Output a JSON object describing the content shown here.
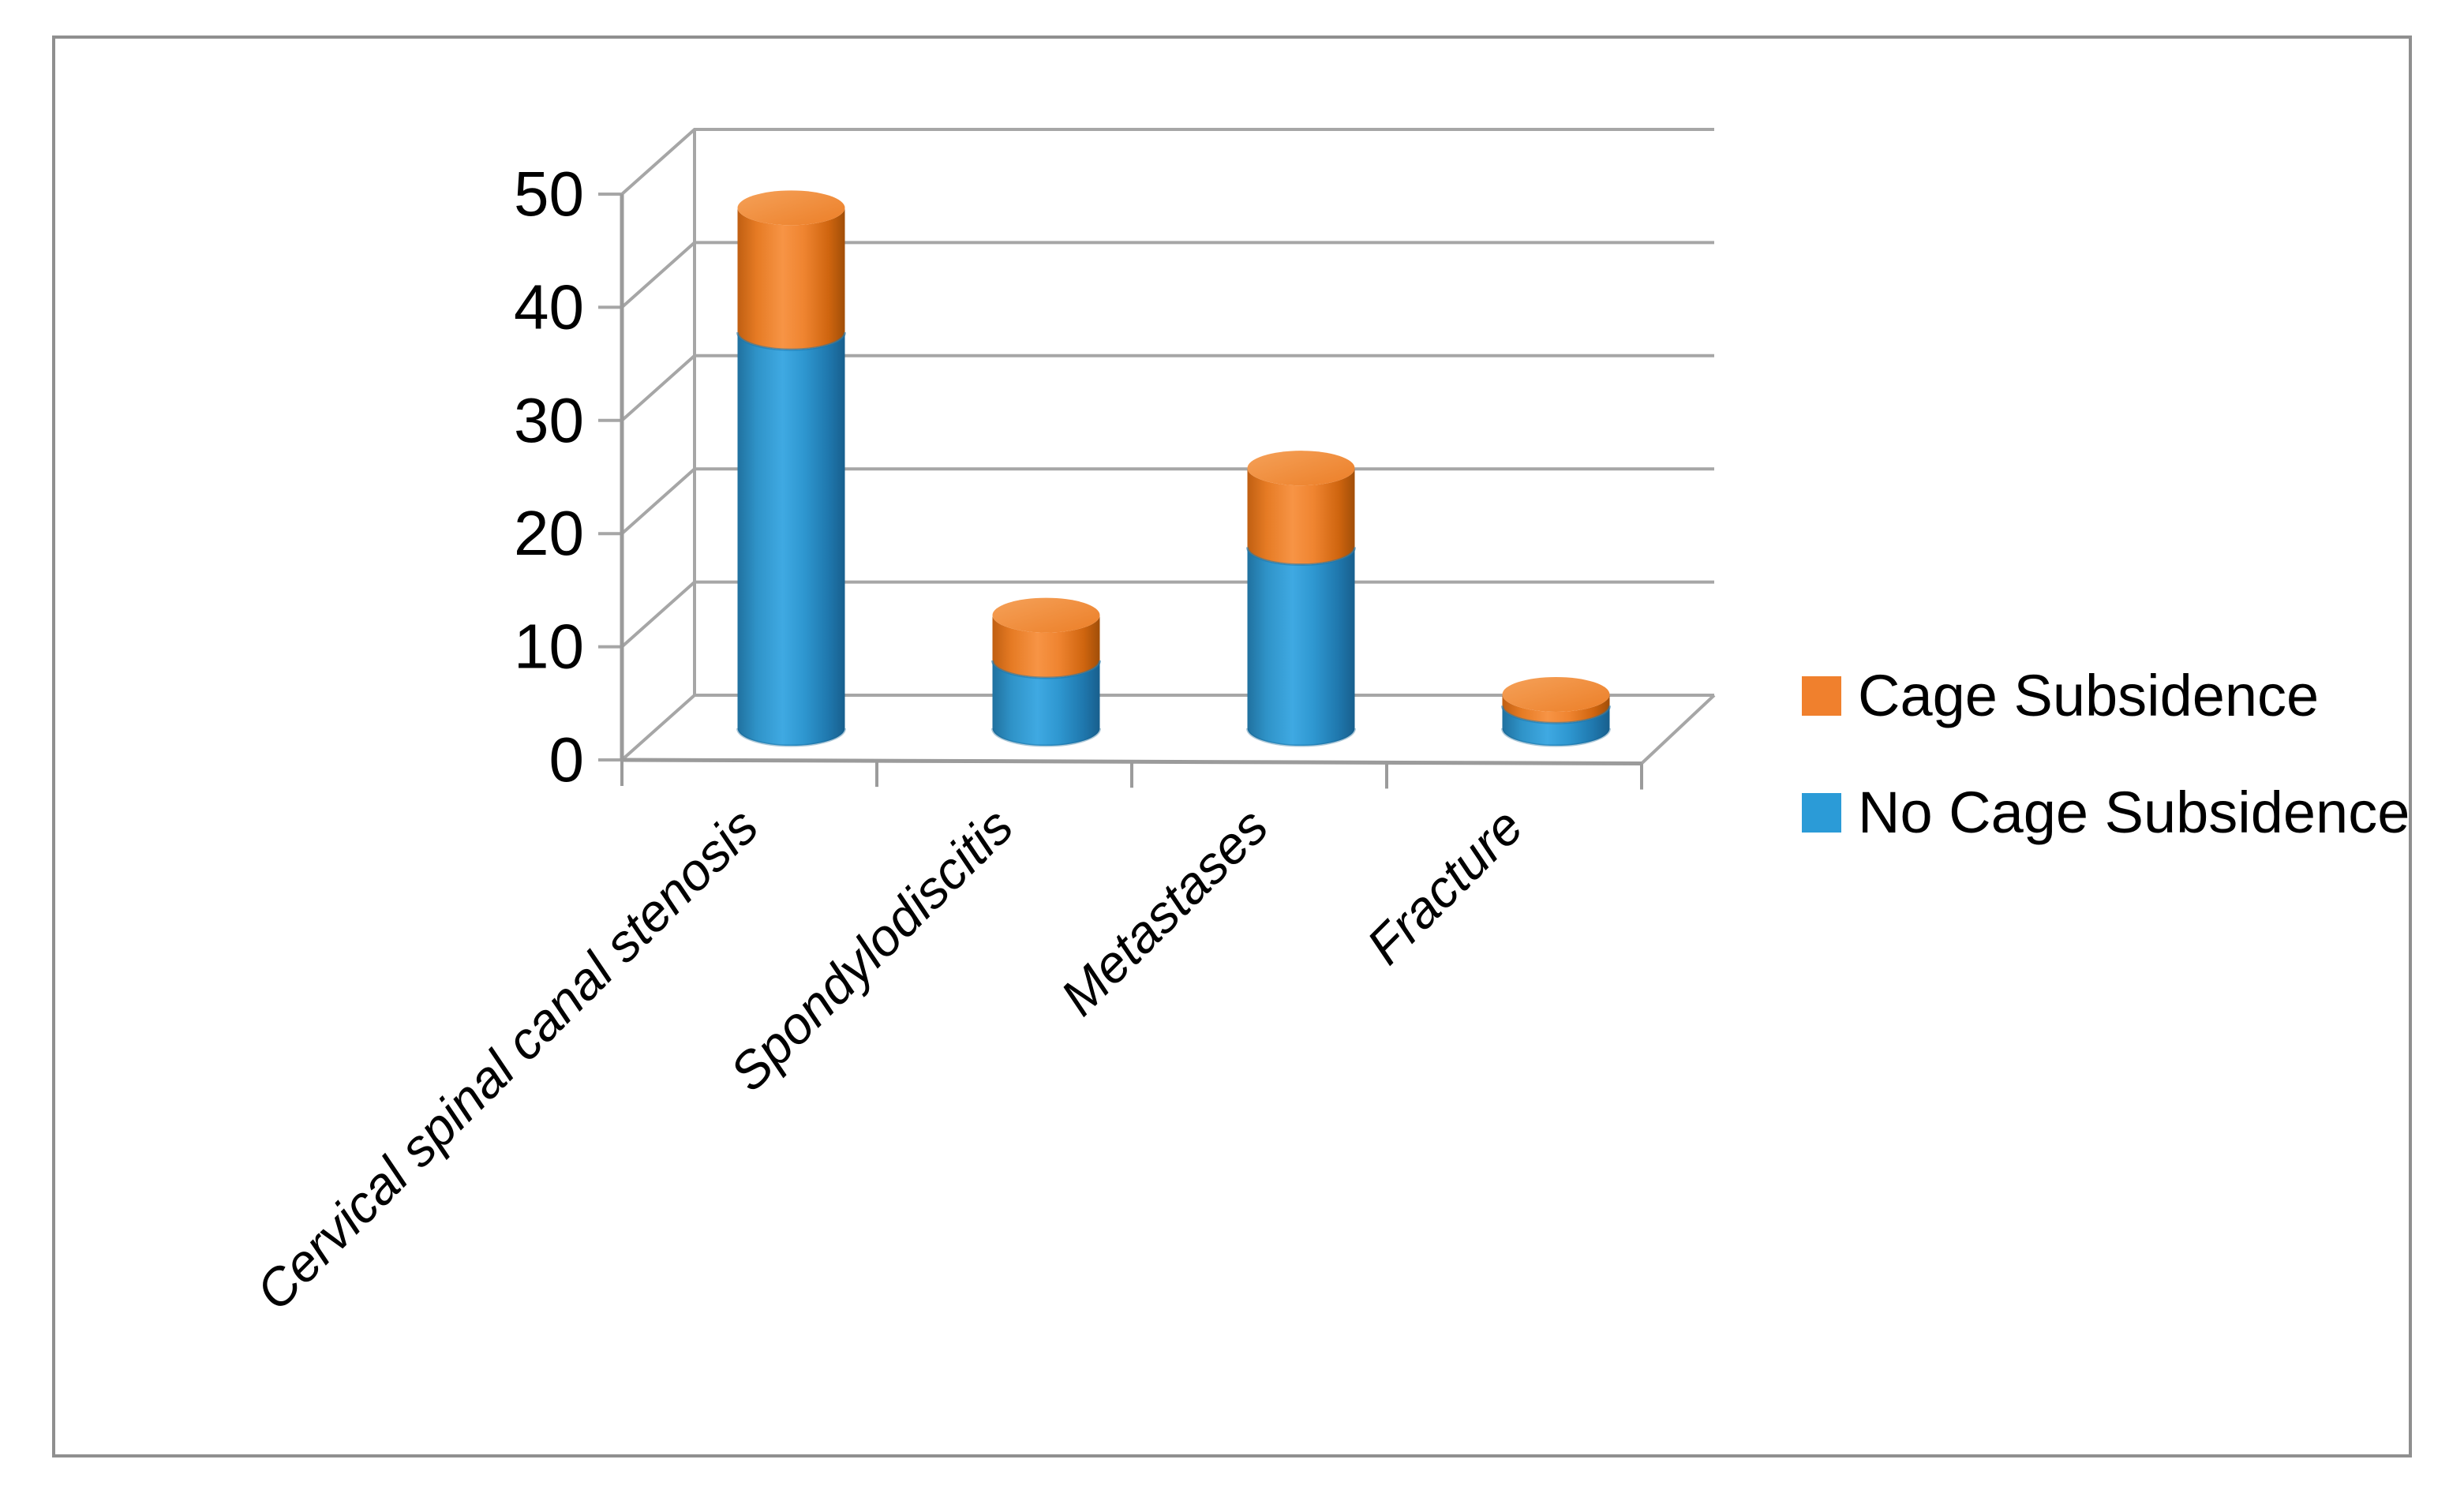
{
  "figure": {
    "background": "#ffffff",
    "border_color": "#8f8f8f"
  },
  "chart_data": {
    "type": "bar",
    "subtype": "3d-stacked-cylinder",
    "title": "",
    "xlabel": "",
    "ylabel": "",
    "categories": [
      "Cervical spinal canal stenosis",
      "Spondylodiscitis",
      "Metastases",
      "Fracture"
    ],
    "series": [
      {
        "name": "No Cage Subsidence",
        "color": "#2B9BD7",
        "values": [
          35,
          6,
          16,
          2
        ]
      },
      {
        "name": "Cage Subsidence",
        "color": "#F0802D",
        "values": [
          11,
          4,
          7,
          1
        ]
      }
    ],
    "stacked": true,
    "ylim": [
      0,
      50
    ],
    "yticks": [
      0,
      10,
      20,
      30,
      40,
      50
    ],
    "grid": true,
    "gridline_color": "#a6a6a6",
    "axis_color": "#9b9b9b",
    "legend_position": "right"
  },
  "legend": {
    "items": [
      {
        "label": "Cage Subsidence",
        "color": "#F0802D"
      },
      {
        "label": "No Cage Subsidence",
        "color": "#2B9BD7"
      }
    ]
  }
}
